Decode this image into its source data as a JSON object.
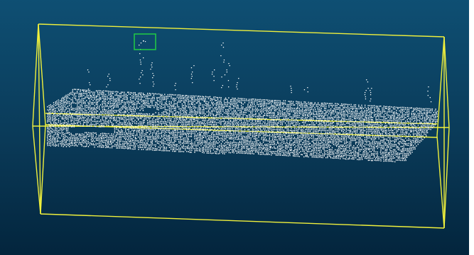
{
  "viewer": {
    "background_top": "#0e4f73",
    "background_bottom": "#03253d",
    "point_color": "#ffffff",
    "bounding_box_color": "#f0f03c",
    "selection_box_color": "#22cc44"
  }
}
